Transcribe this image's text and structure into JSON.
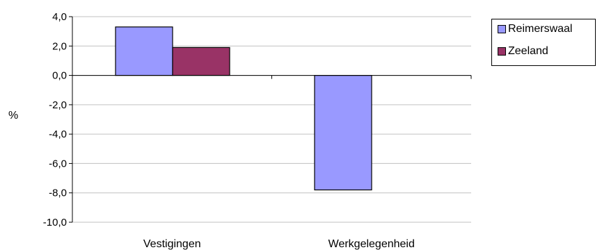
{
  "chart_data": {
    "type": "bar",
    "categories": [
      "Vestigingen",
      "Werkgelegenheid"
    ],
    "series": [
      {
        "name": "Reimerswaal",
        "values": [
          3.3,
          -7.8
        ],
        "color": "#9999ff"
      },
      {
        "name": "Zeeland",
        "values": [
          1.9,
          null
        ],
        "color": "#993366"
      }
    ],
    "ylabel": "%",
    "ylim": [
      -10,
      4
    ],
    "yticks": [
      "4,0",
      "2,0",
      "0,0",
      "-2,0",
      "-4,0",
      "-6,0",
      "-8,0",
      "-10,0"
    ],
    "grid": true,
    "legend_position": "top-right"
  }
}
